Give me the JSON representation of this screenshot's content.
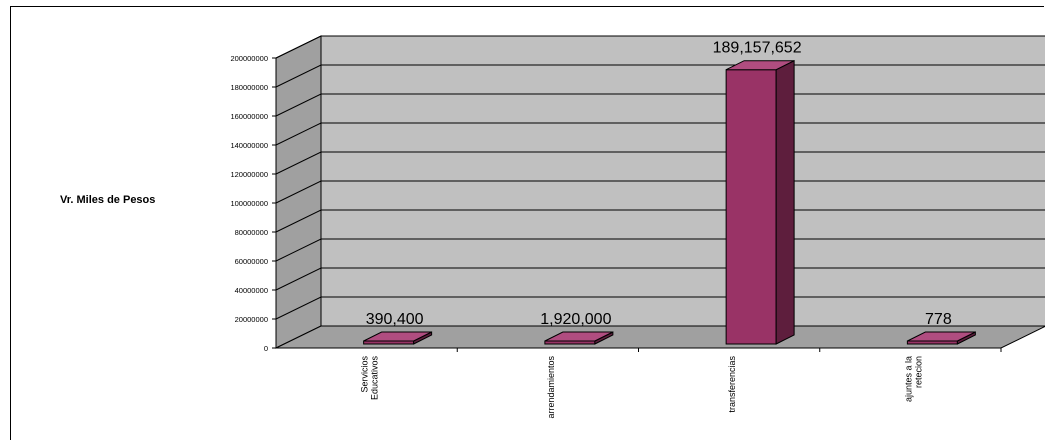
{
  "chart_data": {
    "type": "bar",
    "title": "",
    "xlabel": "",
    "ylabel": "Vr. Miles de Pesos",
    "categories": [
      [
        "Servicios",
        "Educativos"
      ],
      [
        "arrendamientos"
      ],
      [
        "transferencias"
      ],
      [
        "ajuntes a la",
        "retecion"
      ]
    ],
    "values": [
      390400,
      1920000,
      189157652,
      778
    ],
    "data_labels": [
      "390,400",
      "1,920,000",
      "189,157,652",
      "778"
    ],
    "ylim": [
      0,
      200000000
    ],
    "y_ticks": [
      "0",
      "20000000",
      "40000000",
      "60000000",
      "80000000",
      "100000000",
      "120000000",
      "140000000",
      "160000000",
      "180000000",
      "200000000"
    ],
    "grid": true,
    "legend": "none",
    "style": "3d-bar",
    "colors": {
      "bar_front": "#993366",
      "bar_side": "#5e1e3d",
      "bar_top": "#b04d80",
      "wall": "#c0c0c0",
      "floor": "#a0a0a0",
      "grid": "#000000"
    }
  }
}
